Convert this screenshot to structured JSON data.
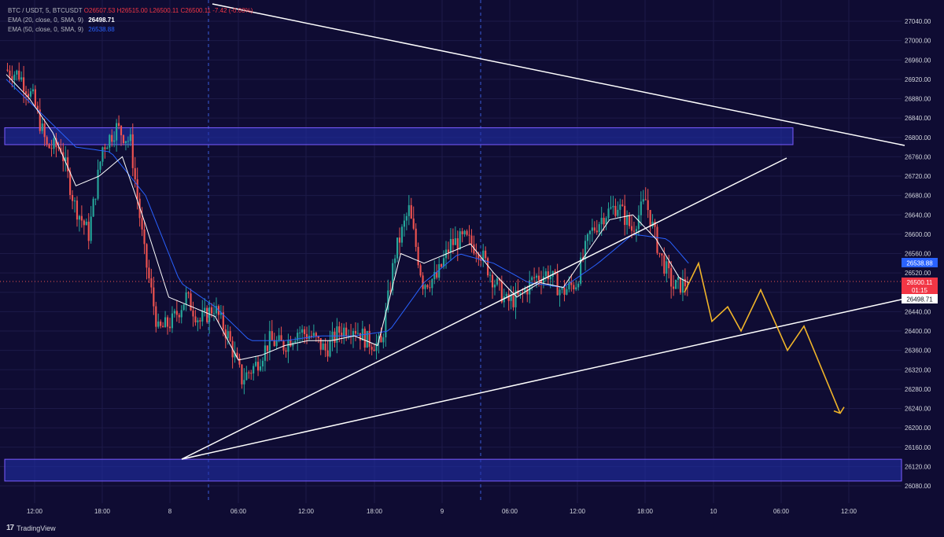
{
  "legend": {
    "symbol": "BTC / USDT, 5, BTCUSDT",
    "open": "O26507.53",
    "high": "H26515.00",
    "low": "L26500.11",
    "close": "C26500.11",
    "change": "-7.42 (-0.03%)",
    "ema20_label": "EMA (20, close, 0, SMA, 9)",
    "ema20_value": "26498.71",
    "ema50_label": "EMA (50, close, 0, SMA, 9)",
    "ema50_value": "26538.88"
  },
  "price_tags": {
    "ema50": "26538.88",
    "last": "26500.11",
    "countdown": "01:15",
    "ema20": "26498.71"
  },
  "footer": {
    "brand": "TradingView",
    "logo_icon": "tradingview-logo-icon"
  },
  "colors": {
    "background": "#0f0c33",
    "up": "#26a69a",
    "down": "#ef5350",
    "ema20": "#ffffff",
    "ema50": "#2962ff",
    "zone_fill": "#1f2fa8",
    "zone_border": "#7b5cff",
    "projection": "#f0b429",
    "trendline": "#ffffff"
  },
  "chart_data": {
    "type": "candlestick",
    "y_axis": {
      "range": [
        26060,
        27080
      ],
      "ticks": [
        26080,
        26120,
        26160,
        26200,
        26240,
        26280,
        26320,
        26360,
        26400,
        26440,
        26480,
        26520,
        26560,
        26600,
        26640,
        26680,
        26720,
        26760,
        26800,
        26840,
        26880,
        26920,
        26960,
        27000,
        27040
      ]
    },
    "x_axis": {
      "ticks": [
        "12:00",
        "18:00",
        "8",
        "06:00",
        "12:00",
        "18:00",
        "9",
        "06:00",
        "12:00",
        "18:00",
        "10",
        "06:00",
        "12:00"
      ],
      "session_breaks": [
        "8",
        "9"
      ]
    },
    "price_path": [
      [
        0,
        26940
      ],
      [
        6,
        26930
      ],
      [
        12,
        26880
      ],
      [
        18,
        26780
      ],
      [
        24,
        26780
      ],
      [
        30,
        26660
      ],
      [
        36,
        26600
      ],
      [
        42,
        26780
      ],
      [
        48,
        26820
      ],
      [
        54,
        26790
      ],
      [
        60,
        26560
      ],
      [
        66,
        26400
      ],
      [
        72,
        26420
      ],
      [
        78,
        26470
      ],
      [
        84,
        26420
      ],
      [
        90,
        26450
      ],
      [
        96,
        26390
      ],
      [
        102,
        26300
      ],
      [
        108,
        26330
      ],
      [
        114,
        26380
      ],
      [
        120,
        26370
      ],
      [
        126,
        26400
      ],
      [
        132,
        26390
      ],
      [
        138,
        26360
      ],
      [
        144,
        26400
      ],
      [
        150,
        26410
      ],
      [
        156,
        26380
      ],
      [
        162,
        26370
      ],
      [
        168,
        26560
      ],
      [
        174,
        26650
      ],
      [
        180,
        26500
      ],
      [
        186,
        26510
      ],
      [
        192,
        26580
      ],
      [
        198,
        26590
      ],
      [
        204,
        26570
      ],
      [
        210,
        26510
      ],
      [
        216,
        26460
      ],
      [
        222,
        26470
      ],
      [
        228,
        26510
      ],
      [
        234,
        26520
      ],
      [
        240,
        26480
      ],
      [
        246,
        26500
      ],
      [
        252,
        26600
      ],
      [
        258,
        26640
      ],
      [
        264,
        26660
      ],
      [
        270,
        26610
      ],
      [
        276,
        26670
      ],
      [
        282,
        26560
      ],
      [
        288,
        26490
      ],
      [
        294,
        26500
      ]
    ],
    "ema20_path": [
      [
        0,
        26930
      ],
      [
        10,
        26880
      ],
      [
        20,
        26810
      ],
      [
        30,
        26700
      ],
      [
        40,
        26720
      ],
      [
        50,
        26760
      ],
      [
        60,
        26620
      ],
      [
        70,
        26470
      ],
      [
        80,
        26450
      ],
      [
        90,
        26430
      ],
      [
        100,
        26340
      ],
      [
        110,
        26350
      ],
      [
        120,
        26370
      ],
      [
        130,
        26380
      ],
      [
        140,
        26380
      ],
      [
        150,
        26390
      ],
      [
        160,
        26370
      ],
      [
        170,
        26560
      ],
      [
        180,
        26540
      ],
      [
        190,
        26560
      ],
      [
        200,
        26580
      ],
      [
        210,
        26520
      ],
      [
        220,
        26470
      ],
      [
        230,
        26500
      ],
      [
        240,
        26490
      ],
      [
        250,
        26560
      ],
      [
        260,
        26630
      ],
      [
        270,
        26640
      ],
      [
        280,
        26590
      ],
      [
        290,
        26510
      ],
      [
        294,
        26500
      ]
    ],
    "ema50_path": [
      [
        0,
        26920
      ],
      [
        15,
        26850
      ],
      [
        30,
        26780
      ],
      [
        45,
        26770
      ],
      [
        60,
        26680
      ],
      [
        75,
        26500
      ],
      [
        90,
        26450
      ],
      [
        105,
        26380
      ],
      [
        120,
        26380
      ],
      [
        135,
        26390
      ],
      [
        150,
        26390
      ],
      [
        165,
        26400
      ],
      [
        180,
        26500
      ],
      [
        195,
        26560
      ],
      [
        210,
        26540
      ],
      [
        225,
        26500
      ],
      [
        240,
        26490
      ],
      [
        255,
        26540
      ],
      [
        270,
        26600
      ],
      [
        285,
        26590
      ],
      [
        294,
        26540
      ]
    ],
    "zones": [
      {
        "name": "resistance-zone",
        "y_low": 26785,
        "y_high": 26820
      },
      {
        "name": "support-zone",
        "y_low": 26090,
        "y_high": 26135
      }
    ],
    "trendlines": [
      {
        "name": "upper-descending-trendline"
      },
      {
        "name": "rising-trendline-steep"
      },
      {
        "name": "rising-trendline-shallow"
      }
    ],
    "projection_path": [
      26480,
      26540,
      26420,
      26450,
      26400,
      26485,
      26360,
      26410,
      26230
    ]
  }
}
